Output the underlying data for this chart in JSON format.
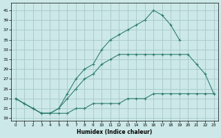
{
  "xlabel": "Humidex (Indice chaleur)",
  "bg_color": "#cce8e8",
  "grid_color": "#aacccc",
  "line_color": "#2e7d6e",
  "xlim": [
    -0.5,
    23.5
  ],
  "ylim": [
    18.5,
    42.5
  ],
  "xticks": [
    0,
    1,
    2,
    3,
    4,
    5,
    6,
    7,
    8,
    9,
    10,
    11,
    12,
    13,
    14,
    15,
    16,
    17,
    18,
    19,
    20,
    21,
    22,
    23
  ],
  "yticks": [
    19,
    21,
    23,
    25,
    27,
    29,
    31,
    33,
    35,
    37,
    39,
    41
  ],
  "curve1_x": [
    0,
    1,
    2,
    3,
    4,
    5,
    6,
    7,
    8,
    9,
    10,
    11,
    12,
    13,
    14,
    15,
    16,
    17,
    18,
    19
  ],
  "curve1_y": [
    23,
    22,
    21,
    20,
    20,
    21,
    24,
    27,
    29,
    30,
    33,
    35,
    36,
    37,
    38,
    39,
    41,
    40,
    38,
    35
  ],
  "curve2_x": [
    0,
    1,
    2,
    3,
    4,
    5,
    6,
    7,
    8,
    9,
    10,
    11,
    12,
    13,
    14,
    15,
    16,
    17,
    18,
    19,
    20,
    21,
    22,
    23
  ],
  "curve2_y": [
    23,
    22,
    21,
    20,
    20,
    21,
    23,
    25,
    27,
    28,
    30,
    31,
    32,
    32,
    32,
    32,
    32,
    32,
    32,
    32,
    32,
    30,
    28,
    24
  ],
  "curve3_x": [
    0,
    2,
    3,
    4,
    5,
    6,
    7,
    8,
    9,
    10,
    11,
    12,
    13,
    14,
    15,
    16,
    17,
    18,
    19,
    20,
    21,
    22,
    23
  ],
  "curve3_y": [
    23,
    21,
    20,
    20,
    20,
    20,
    21,
    21,
    22,
    22,
    22,
    22,
    23,
    23,
    23,
    24,
    24,
    24,
    24,
    24,
    24,
    24,
    24
  ]
}
